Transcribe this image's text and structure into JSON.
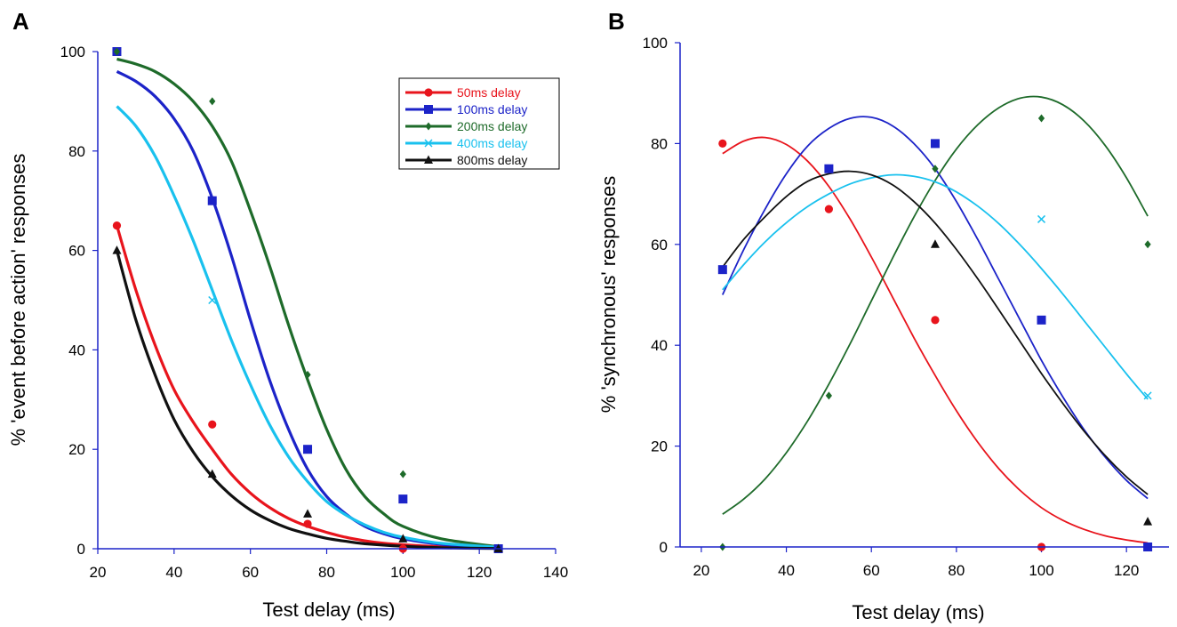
{
  "chart_data": [
    {
      "panel_label": "A",
      "type": "scatter",
      "xlabel": "Test delay (ms)",
      "ylabel": "% 'event before action' responses",
      "xlim": [
        20,
        140
      ],
      "ylim": [
        0,
        100
      ],
      "xticks": [
        20,
        40,
        60,
        80,
        100,
        120,
        140
      ],
      "yticks": [
        0,
        20,
        40,
        60,
        80,
        100
      ],
      "legend_position": "top-right",
      "fit": "sigmoid",
      "x": [
        25,
        50,
        75,
        100,
        125
      ],
      "series": [
        {
          "name": "50ms delay",
          "color": "#e8141c",
          "marker": "circle",
          "values": [
            65,
            25,
            5,
            0,
            0
          ],
          "fit_curve": [
            [
              25,
              65
            ],
            [
              30,
              52
            ],
            [
              35,
              41
            ],
            [
              40,
              32
            ],
            [
              45,
              25.5
            ],
            [
              50,
              20
            ],
            [
              55,
              15
            ],
            [
              60,
              11.2
            ],
            [
              65,
              8.3
            ],
            [
              70,
              6.1
            ],
            [
              75,
              4.5
            ],
            [
              80,
              3.3
            ],
            [
              85,
              2.3
            ],
            [
              90,
              1.6
            ],
            [
              95,
              1.1
            ],
            [
              100,
              0.8
            ],
            [
              110,
              0.4
            ],
            [
              125,
              0.1
            ]
          ]
        },
        {
          "name": "100ms delay",
          "color": "#1c23c8",
          "marker": "square",
          "values": [
            100,
            70,
            20,
            10,
            0
          ],
          "fit_curve": [
            [
              25,
              96
            ],
            [
              30,
              94
            ],
            [
              35,
              91
            ],
            [
              40,
              86.5
            ],
            [
              45,
              80
            ],
            [
              50,
              70.5
            ],
            [
              55,
              59
            ],
            [
              60,
              46
            ],
            [
              65,
              34
            ],
            [
              70,
              24
            ],
            [
              75,
              16
            ],
            [
              80,
              10.5
            ],
            [
              85,
              7
            ],
            [
              90,
              4.5
            ],
            [
              95,
              3
            ],
            [
              100,
              2
            ],
            [
              110,
              0.9
            ],
            [
              125,
              0.3
            ]
          ]
        },
        {
          "name": "200ms delay",
          "color": "#1e6b2a",
          "marker": "diamond",
          "values": [
            100,
            90,
            35,
            15,
            0
          ],
          "fit_curve": [
            [
              25,
              98.5
            ],
            [
              30,
              97.5
            ],
            [
              35,
              96
            ],
            [
              40,
              93.5
            ],
            [
              45,
              90
            ],
            [
              50,
              85
            ],
            [
              55,
              78
            ],
            [
              60,
              68
            ],
            [
              65,
              57
            ],
            [
              70,
              45
            ],
            [
              75,
              34
            ],
            [
              80,
              24
            ],
            [
              85,
              16
            ],
            [
              90,
              10.5
            ],
            [
              95,
              7
            ],
            [
              100,
              4.5
            ],
            [
              110,
              2
            ],
            [
              125,
              0.4
            ]
          ]
        },
        {
          "name": "400ms delay",
          "color": "#19c1ee",
          "marker": "x",
          "values": [
            null,
            50,
            null,
            null,
            null
          ],
          "fit_curve": [
            [
              25,
              89
            ],
            [
              30,
              85
            ],
            [
              35,
              79
            ],
            [
              40,
              71
            ],
            [
              45,
              62
            ],
            [
              50,
              52
            ],
            [
              55,
              42
            ],
            [
              60,
              33
            ],
            [
              65,
              25
            ],
            [
              70,
              18.5
            ],
            [
              75,
              13.5
            ],
            [
              80,
              9.5
            ],
            [
              85,
              6.8
            ],
            [
              90,
              4.8
            ],
            [
              95,
              3.3
            ],
            [
              100,
              2.3
            ],
            [
              110,
              1.1
            ],
            [
              125,
              0.3
            ]
          ]
        },
        {
          "name": "800ms delay",
          "color": "#111111",
          "marker": "triangle",
          "values": [
            60,
            15,
            7,
            2,
            0
          ],
          "fit_curve": [
            [
              25,
              60
            ],
            [
              30,
              46
            ],
            [
              35,
              35
            ],
            [
              40,
              26
            ],
            [
              45,
              19.5
            ],
            [
              50,
              14.5
            ],
            [
              55,
              10.7
            ],
            [
              60,
              7.8
            ],
            [
              65,
              5.7
            ],
            [
              70,
              4.1
            ],
            [
              75,
              3
            ],
            [
              80,
              2.1
            ],
            [
              85,
              1.5
            ],
            [
              90,
              1
            ],
            [
              100,
              0.5
            ],
            [
              110,
              0.2
            ],
            [
              125,
              0.05
            ]
          ]
        }
      ]
    },
    {
      "panel_label": "B",
      "type": "scatter",
      "xlabel": "Test delay (ms)",
      "ylabel": "% 'synchronous' responses",
      "xlim": [
        15,
        130
      ],
      "ylim": [
        0,
        100
      ],
      "xticks": [
        20,
        40,
        60,
        80,
        100,
        120
      ],
      "yticks": [
        0,
        20,
        40,
        60,
        80,
        100
      ],
      "fit": "gaussian",
      "x": [
        25,
        50,
        75,
        100,
        125
      ],
      "series": [
        {
          "name": "50ms delay",
          "color": "#e8141c",
          "marker": "circle",
          "values": [
            80,
            67,
            45,
            0,
            null
          ],
          "fit_curve": [
            [
              25,
              78
            ],
            [
              30,
              80.5
            ],
            [
              35,
              81.2
            ],
            [
              40,
              79.8
            ],
            [
              45,
              76.5
            ],
            [
              50,
              71.5
            ],
            [
              55,
              65
            ],
            [
              60,
              57.5
            ],
            [
              65,
              49.5
            ],
            [
              70,
              41.5
            ],
            [
              75,
              34
            ],
            [
              80,
              27
            ],
            [
              85,
              20.8
            ],
            [
              90,
              15.5
            ],
            [
              95,
              11.2
            ],
            [
              100,
              7.8
            ],
            [
              105,
              5.3
            ],
            [
              110,
              3.5
            ],
            [
              115,
              2.2
            ],
            [
              120,
              1.4
            ],
            [
              125,
              0.8
            ]
          ]
        },
        {
          "name": "100ms delay",
          "color": "#1c23c8",
          "marker": "square",
          "values": [
            55,
            75,
            80,
            45,
            0
          ],
          "fit_curve": [
            [
              25,
              50
            ],
            [
              30,
              59
            ],
            [
              35,
              67
            ],
            [
              40,
              74
            ],
            [
              45,
              79.5
            ],
            [
              50,
              83
            ],
            [
              55,
              85
            ],
            [
              60,
              85.2
            ],
            [
              65,
              83.5
            ],
            [
              70,
              80
            ],
            [
              75,
              75
            ],
            [
              80,
              68.5
            ],
            [
              85,
              61
            ],
            [
              90,
              53
            ],
            [
              95,
              45
            ],
            [
              100,
              37
            ],
            [
              105,
              29.8
            ],
            [
              110,
              23.3
            ],
            [
              115,
              17.8
            ],
            [
              120,
              13.2
            ],
            [
              125,
              9.6
            ]
          ]
        },
        {
          "name": "200ms delay",
          "color": "#1e6b2a",
          "marker": "diamond",
          "values": [
            0,
            30,
            75,
            85,
            60
          ],
          "fit_curve": [
            [
              25,
              6.5
            ],
            [
              30,
              9.5
            ],
            [
              35,
              13.5
            ],
            [
              40,
              18.7
            ],
            [
              45,
              25
            ],
            [
              50,
              32.3
            ],
            [
              55,
              40.3
            ],
            [
              60,
              48.8
            ],
            [
              65,
              57.3
            ],
            [
              70,
              65.4
            ],
            [
              75,
              72.7
            ],
            [
              80,
              78.9
            ],
            [
              85,
              83.7
            ],
            [
              90,
              87.1
            ],
            [
              95,
              89
            ],
            [
              100,
              89.2
            ],
            [
              105,
              87.7
            ],
            [
              110,
              84.5
            ],
            [
              115,
              79.6
            ],
            [
              120,
              73.2
            ],
            [
              125,
              65.6
            ]
          ]
        },
        {
          "name": "400ms delay",
          "color": "#19c1ee",
          "marker": "x",
          "values": [
            null,
            null,
            null,
            65,
            30
          ],
          "fit_curve": [
            [
              25,
              51
            ],
            [
              30,
              56
            ],
            [
              35,
              60.5
            ],
            [
              40,
              64.3
            ],
            [
              45,
              67.5
            ],
            [
              50,
              70
            ],
            [
              55,
              72
            ],
            [
              60,
              73.2
            ],
            [
              65,
              73.8
            ],
            [
              70,
              73.5
            ],
            [
              75,
              72.4
            ],
            [
              80,
              70.4
            ],
            [
              85,
              67.6
            ],
            [
              90,
              64.1
            ],
            [
              95,
              59.9
            ],
            [
              100,
              55.2
            ],
            [
              105,
              50.2
            ],
            [
              110,
              44.9
            ],
            [
              115,
              39.6
            ],
            [
              120,
              34.3
            ],
            [
              125,
              29.3
            ]
          ]
        },
        {
          "name": "800ms delay",
          "color": "#111111",
          "marker": "triangle",
          "values": [
            null,
            null,
            60,
            null,
            5
          ],
          "fit_curve": [
            [
              25,
              55.5
            ],
            [
              30,
              61
            ],
            [
              35,
              65.5
            ],
            [
              40,
              69.5
            ],
            [
              45,
              72.5
            ],
            [
              50,
              74
            ],
            [
              55,
              74.5
            ],
            [
              60,
              73.8
            ],
            [
              65,
              71.8
            ],
            [
              70,
              68.5
            ],
            [
              75,
              64.2
            ],
            [
              80,
              59
            ],
            [
              85,
              53.2
            ],
            [
              90,
              47
            ],
            [
              95,
              40.7
            ],
            [
              100,
              34.4
            ],
            [
              105,
              28.5
            ],
            [
              110,
              23
            ],
            [
              115,
              18.1
            ],
            [
              120,
              13.9
            ],
            [
              125,
              10.4
            ]
          ]
        }
      ]
    }
  ]
}
